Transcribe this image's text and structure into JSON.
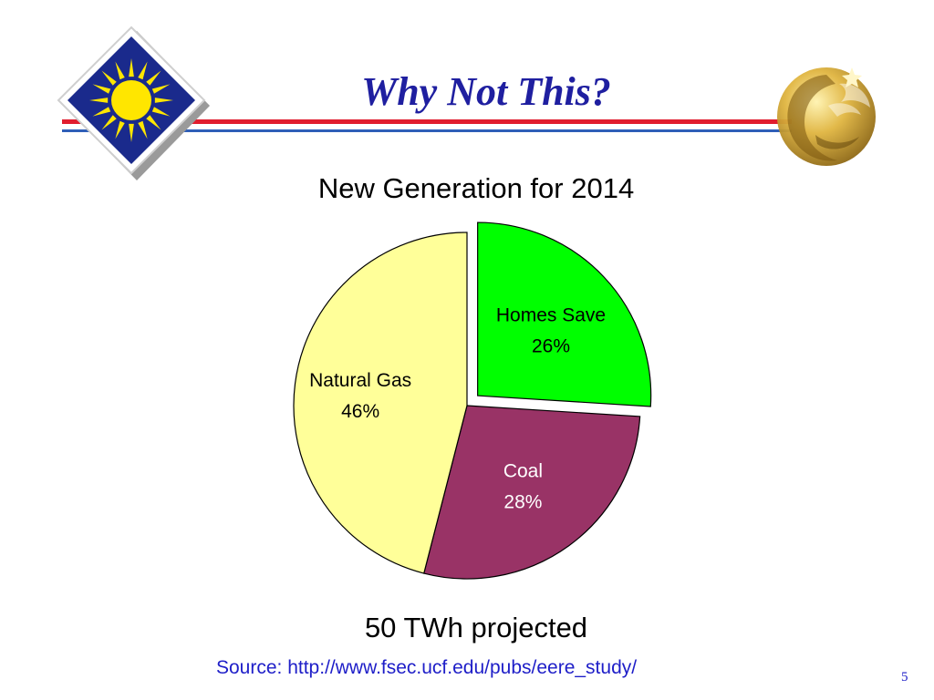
{
  "slide": {
    "title": "Why Not This?",
    "source": "Source: http://www.fsec.ucf.edu/pubs/eere_study/",
    "page_number": "5",
    "total_note": "50 TWh projected",
    "colors": {
      "title": "#1f1fa0",
      "rule_red": "#e11d2e",
      "rule_blue": "#2f5fb8",
      "source": "#1e1ec8"
    },
    "logos": {
      "left": "fsec-sun-logo",
      "right": "ucf-pegasus-logo"
    }
  },
  "chart_data": {
    "type": "pie",
    "title": "New Generation for 2014",
    "start_angle_deg": 0,
    "direction": "clockwise",
    "slices": [
      {
        "label": "Homes Save",
        "value": 26,
        "value_label": "26%",
        "color": "#00ff00",
        "exploded": true
      },
      {
        "label": "Coal",
        "value": 28,
        "value_label": "28%",
        "color": "#993366",
        "exploded": false
      },
      {
        "label": "Natural Gas",
        "value": 46,
        "value_label": "46%",
        "color": "#ffff99",
        "exploded": false
      }
    ]
  }
}
